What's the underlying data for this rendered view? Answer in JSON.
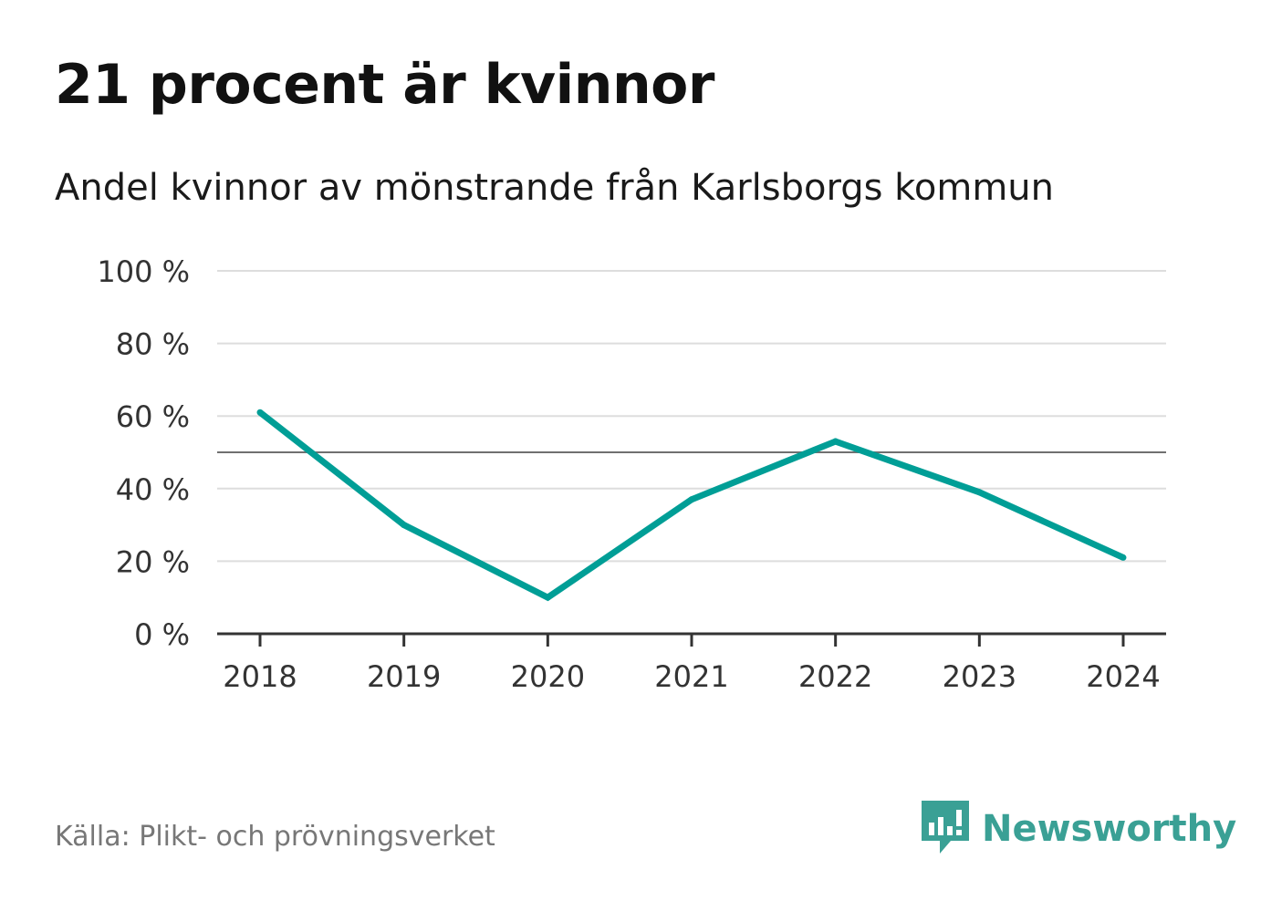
{
  "title": "21 procent är kvinnor",
  "subtitle": "Andel kvinnor av mönstrande från Karlsborgs kommun",
  "source": "Källa: Plikt- och prövningsverket",
  "brand": "Newsworthy",
  "colors": {
    "line": "#009e96",
    "reference": "#707070",
    "grid": "#dddddd",
    "axis": "#333333",
    "brand": "#3aa095"
  },
  "icons": {
    "brand_logo": "newsworthy-logo-icon"
  },
  "chart_data": {
    "type": "line",
    "title": "21 procent är kvinnor",
    "subtitle": "Andel kvinnor av mönstrande från Karlsborgs kommun",
    "xlabel": "",
    "ylabel": "",
    "categories": [
      "2018",
      "2019",
      "2020",
      "2021",
      "2022",
      "2023",
      "2024"
    ],
    "series": [
      {
        "name": "Andel kvinnor",
        "values": [
          61,
          30,
          10,
          37,
          53,
          39,
          21
        ]
      }
    ],
    "ylim": [
      0,
      100
    ],
    "yticks": [
      0,
      20,
      40,
      60,
      80,
      100
    ],
    "ytick_labels": [
      "0 %",
      "20 %",
      "40 %",
      "60 %",
      "80 %",
      "100 %"
    ],
    "reference_line": 50,
    "grid": true
  }
}
